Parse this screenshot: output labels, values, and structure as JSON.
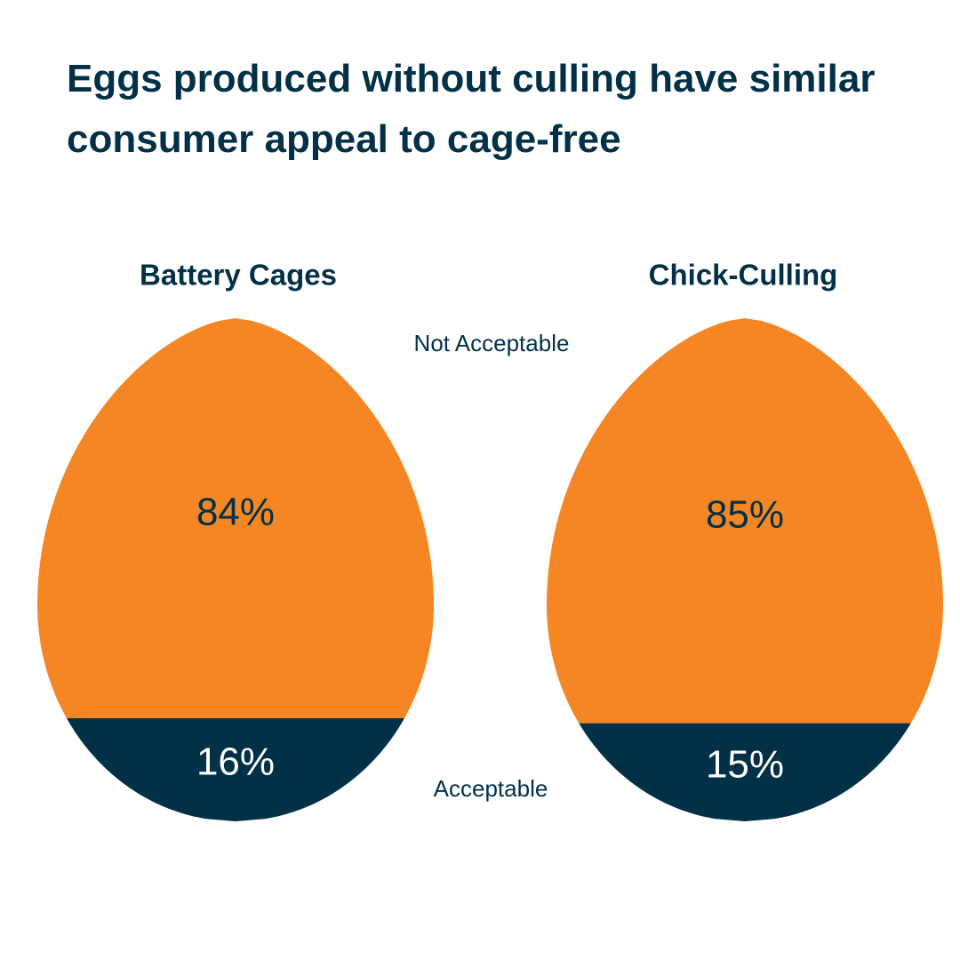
{
  "chart_data": {
    "type": "egg",
    "title": "Eggs produced without culling have similar consumer appeal to cage-free",
    "categories": [
      "Battery Cages",
      "Chick-Culling"
    ],
    "series": [
      {
        "name": "Not Acceptable",
        "color": "#f58623",
        "values": [
          84,
          85
        ],
        "value_labels": [
          "84%",
          "85%"
        ]
      },
      {
        "name": "Acceptable",
        "color": "#023047",
        "values": [
          16,
          15
        ],
        "value_labels": [
          "16%",
          "15%"
        ]
      }
    ]
  }
}
